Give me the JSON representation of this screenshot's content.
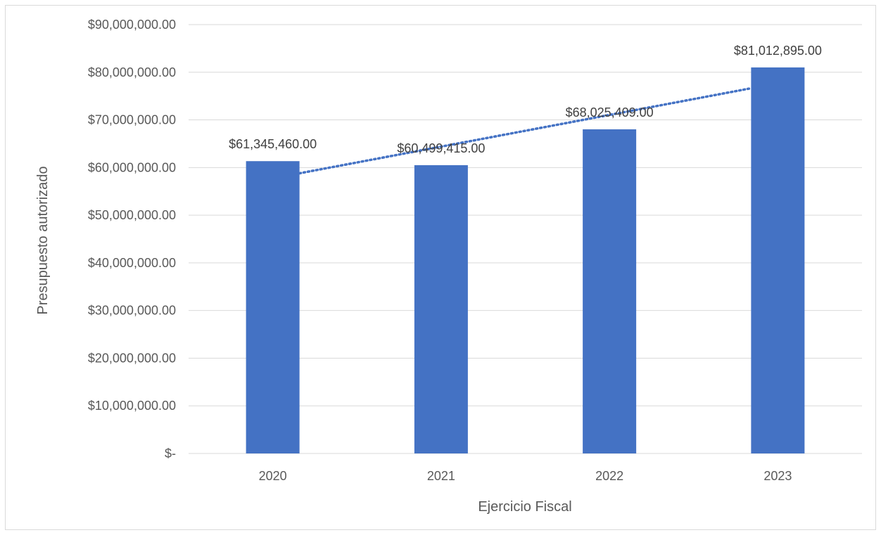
{
  "chart_data": {
    "type": "bar",
    "categories": [
      "2020",
      "2021",
      "2022",
      "2023"
    ],
    "values": [
      61345460,
      60499415,
      68025409,
      81012895
    ],
    "data_labels": [
      "$61,345,460.00",
      "$60,499,415.00",
      "$68,025,409.00",
      "$81,012,895.00"
    ],
    "title": "",
    "xlabel": "Ejercicio Fiscal",
    "ylabel": "Presupuesto autorizado",
    "ylim": [
      0,
      90000000
    ],
    "y_ticks": [
      0,
      10000000,
      20000000,
      30000000,
      40000000,
      50000000,
      60000000,
      70000000,
      80000000,
      90000000
    ],
    "y_tick_labels": [
      "$-",
      "$10,000,000.00",
      "$20,000,000.00",
      "$30,000,000.00",
      "$40,000,000.00",
      "$50,000,000.00",
      "$60,000,000.00",
      "$70,000,000.00",
      "$80,000,000.00",
      "$90,000,000.00"
    ],
    "grid": true,
    "legend": "none",
    "trendline": "linear",
    "trendline_style": "dotted",
    "colors": {
      "bar": "#4472C4",
      "trendline": "#4472C4"
    }
  }
}
